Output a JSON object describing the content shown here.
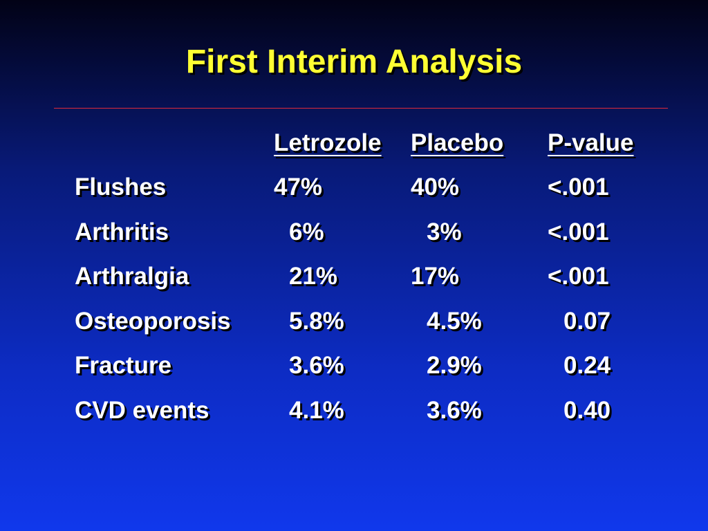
{
  "slide": {
    "title": "First Interim Analysis"
  },
  "table": {
    "headers": [
      "Letrozole",
      "Placebo",
      "P-value"
    ],
    "rows": [
      {
        "label": "Flushes",
        "letrozole": "47%",
        "placebo": "40%",
        "p_value": "<.001"
      },
      {
        "label": "Arthritis",
        "letrozole": "6%",
        "placebo": "3%",
        "p_value": "<.001"
      },
      {
        "label": "Arthralgia",
        "letrozole": "21%",
        "placebo": "17%",
        "p_value": "<.001"
      },
      {
        "label": "Osteoporosis",
        "letrozole": "5.8%",
        "placebo": "4.5%",
        "p_value": "0.07"
      },
      {
        "label": "Fracture",
        "letrozole": "3.6%",
        "placebo": "2.9%",
        "p_value": "0.24"
      },
      {
        "label": "CVD events",
        "letrozole": "4.1%",
        "placebo": "3.6%",
        "p_value": "0.40"
      }
    ]
  },
  "colors": {
    "title": "#ffff33",
    "text": "#ffffff",
    "rule": "#e0293a",
    "background_top": "#020216",
    "background_bottom": "#1038ec"
  }
}
